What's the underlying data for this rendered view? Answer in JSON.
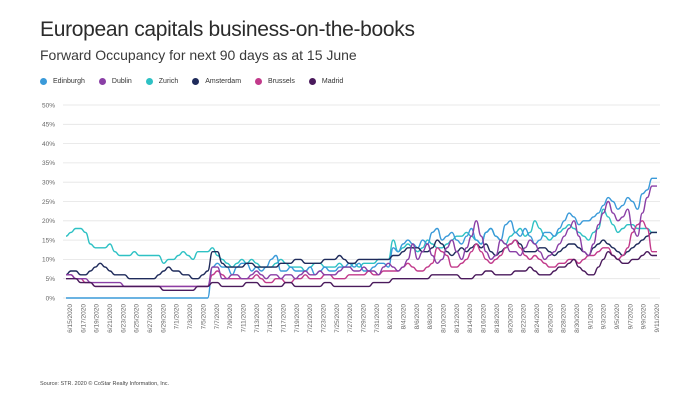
{
  "title": "European capitals business-on-the-books",
  "subtitle": "Forward Occupancy for next 90 days as at 15 June",
  "source": "Source: STR. 2020 © CoStar Realty Information, Inc.",
  "colors": {
    "Edinburgh": "#3a9ad9",
    "Dublin": "#8a3fa6",
    "Zurich": "#2ec1c4",
    "Amsterdam": "#1f2b5b",
    "Brussels": "#c23a8b",
    "Madrid": "#4a1a5c"
  },
  "chart_data": {
    "type": "line",
    "title": "European capitals business-on-the-books",
    "subtitle": "Forward Occupancy for next 90 days as at 15 June",
    "ylim": [
      0,
      50
    ],
    "yticks": [
      "0%",
      "5%",
      "10%",
      "15%",
      "20%",
      "25%",
      "30%",
      "35%",
      "40%",
      "45%",
      "50%"
    ],
    "grid": true,
    "legend": "top-left",
    "x_labels": [
      "6/15/2020",
      "6/17/2020",
      "6/19/2020",
      "6/21/2020",
      "6/23/2020",
      "6/25/2020",
      "6/27/2020",
      "6/29/2020",
      "7/1/2020",
      "7/3/2020",
      "7/5/2020",
      "7/7/2020",
      "7/9/2020",
      "7/11/2020",
      "7/13/2020",
      "7/15/2020",
      "7/17/2020",
      "7/19/2020",
      "7/21/2020",
      "7/23/2020",
      "7/25/2020",
      "7/27/2020",
      "7/29/2020",
      "7/31/2020",
      "8/2/2020",
      "8/4/2020",
      "8/6/2020",
      "8/8/2020",
      "8/10/2020",
      "8/12/2020",
      "8/14/2020",
      "8/16/2020",
      "8/18/2020",
      "8/20/2020",
      "8/22/2020",
      "8/24/2020",
      "8/26/2020",
      "8/28/2020",
      "8/30/2020",
      "9/1/2020",
      "9/3/2020",
      "9/5/2020",
      "9/7/2020",
      "9/9/2020",
      "9/11/2020"
    ],
    "series": [
      {
        "name": "Edinburgh",
        "values": [
          0,
          0,
          0,
          0,
          0,
          0,
          0,
          0,
          0,
          0,
          0,
          0,
          0,
          0,
          0,
          0,
          0,
          0,
          0,
          0,
          0,
          0,
          0,
          0,
          0,
          0,
          0,
          0,
          0,
          0,
          8,
          9,
          8,
          8,
          6,
          8,
          9,
          9,
          7,
          8,
          7,
          8,
          10,
          11,
          7,
          7,
          8,
          7,
          7,
          7,
          8,
          6,
          7,
          8,
          7,
          7,
          8,
          8,
          9,
          8,
          9,
          7,
          7,
          8,
          9,
          9,
          8,
          13,
          12,
          14,
          15,
          14,
          13,
          15,
          14,
          17,
          18,
          15,
          16,
          17,
          15,
          14,
          16,
          18,
          15,
          14,
          17,
          18,
          16,
          15,
          19,
          20,
          17,
          16,
          18,
          16,
          14,
          15,
          17,
          17,
          16,
          18,
          20,
          22,
          21,
          19,
          20,
          20,
          21,
          22,
          24,
          26,
          25,
          23,
          24,
          26,
          25,
          23,
          27,
          28,
          31,
          31
        ]
      },
      {
        "name": "Dublin",
        "values": [
          6,
          6,
          5,
          5,
          5,
          4,
          4,
          4,
          4,
          4,
          4,
          4,
          3,
          3,
          3,
          3,
          3,
          3,
          3,
          3,
          3,
          3,
          3,
          3,
          3,
          3,
          3,
          3,
          3,
          3,
          8,
          8,
          5,
          5,
          6,
          6,
          5,
          5,
          6,
          7,
          6,
          5,
          6,
          6,
          5,
          6,
          6,
          5,
          6,
          7,
          6,
          6,
          7,
          6,
          6,
          6,
          7,
          8,
          8,
          7,
          7,
          8,
          7,
          7,
          6,
          8,
          9,
          8,
          7,
          8,
          10,
          14,
          10,
          12,
          14,
          11,
          9,
          10,
          13,
          15,
          12,
          10,
          13,
          16,
          20,
          16,
          12,
          10,
          11,
          15,
          14,
          12,
          12,
          11,
          13,
          15,
          14,
          12,
          10,
          11,
          12,
          14,
          16,
          18,
          20,
          16,
          12,
          11,
          14,
          19,
          22,
          25,
          22,
          20,
          21,
          23,
          18,
          16,
          22,
          26,
          29,
          29
        ]
      },
      {
        "name": "Zurich",
        "values": [
          16,
          17,
          18,
          18,
          17,
          14,
          13,
          13,
          13,
          14,
          12,
          11,
          11,
          11,
          12,
          11,
          11,
          11,
          11,
          11,
          9,
          10,
          10,
          11,
          12,
          11,
          10,
          12,
          12,
          12,
          13,
          11,
          10,
          9,
          8,
          9,
          10,
          9,
          10,
          9,
          8,
          8,
          8,
          9,
          10,
          9,
          8,
          8,
          8,
          7,
          8,
          9,
          9,
          8,
          8,
          8,
          9,
          8,
          8,
          9,
          8,
          9,
          9,
          9,
          10,
          10,
          10,
          15,
          12,
          13,
          14,
          13,
          12,
          13,
          15,
          14,
          13,
          13,
          14,
          15,
          16,
          16,
          17,
          16,
          15,
          14,
          17,
          18,
          16,
          15,
          14,
          16,
          17,
          18,
          16,
          17,
          20,
          18,
          16,
          15,
          16,
          17,
          18,
          19,
          18,
          17,
          16,
          15,
          17,
          18,
          23,
          21,
          19,
          17,
          18,
          19,
          19,
          18,
          18,
          18,
          17,
          17
        ]
      },
      {
        "name": "Amsterdam",
        "values": [
          6,
          7,
          7,
          6,
          6,
          7,
          8,
          9,
          8,
          7,
          6,
          6,
          6,
          5,
          5,
          5,
          5,
          5,
          5,
          6,
          7,
          8,
          7,
          7,
          6,
          6,
          5,
          5,
          6,
          7,
          12,
          12,
          9,
          8,
          8,
          8,
          8,
          9,
          9,
          8,
          8,
          8,
          8,
          8,
          9,
          9,
          9,
          10,
          10,
          9,
          9,
          9,
          9,
          10,
          10,
          10,
          11,
          10,
          9,
          9,
          10,
          10,
          10,
          10,
          10,
          10,
          10,
          11,
          11,
          12,
          13,
          13,
          13,
          12,
          12,
          13,
          15,
          14,
          12,
          11,
          12,
          13,
          12,
          13,
          14,
          13,
          14,
          12,
          11,
          12,
          13,
          14,
          15,
          14,
          12,
          12,
          12,
          13,
          13,
          12,
          11,
          12,
          13,
          14,
          14,
          13,
          12,
          11,
          13,
          14,
          15,
          14,
          13,
          12,
          11,
          12,
          13,
          14,
          15,
          16,
          17,
          17
        ]
      },
      {
        "name": "Brussels",
        "values": [
          6,
          6,
          5,
          5,
          4,
          4,
          3,
          3,
          3,
          3,
          3,
          3,
          3,
          3,
          3,
          3,
          3,
          3,
          3,
          3,
          3,
          3,
          3,
          3,
          3,
          3,
          3,
          3,
          3,
          3,
          6,
          7,
          6,
          5,
          5,
          5,
          5,
          5,
          5,
          6,
          5,
          4,
          4,
          5,
          5,
          4,
          4,
          5,
          5,
          6,
          5,
          5,
          5,
          6,
          6,
          5,
          5,
          5,
          6,
          6,
          6,
          6,
          7,
          6,
          6,
          7,
          7,
          7,
          7,
          8,
          9,
          8,
          7,
          7,
          8,
          9,
          13,
          12,
          11,
          8,
          8,
          9,
          10,
          12,
          14,
          12,
          10,
          9,
          10,
          11,
          13,
          14,
          15,
          13,
          11,
          10,
          11,
          10,
          9,
          8,
          8,
          9,
          9,
          10,
          10,
          9,
          10,
          11,
          11,
          12,
          13,
          13,
          11,
          10,
          11,
          13,
          17,
          19,
          20,
          18,
          12,
          12
        ]
      },
      {
        "name": "Madrid",
        "values": [
          5,
          5,
          5,
          4,
          4,
          4,
          3,
          3,
          3,
          3,
          3,
          3,
          3,
          3,
          3,
          3,
          3,
          3,
          3,
          3,
          2,
          2,
          2,
          2,
          2,
          2,
          2,
          3,
          3,
          3,
          4,
          4,
          3,
          3,
          3,
          3,
          3,
          4,
          4,
          4,
          3,
          3,
          3,
          3,
          3,
          4,
          4,
          3,
          3,
          3,
          3,
          3,
          3,
          4,
          4,
          3,
          3,
          3,
          3,
          3,
          3,
          3,
          3,
          4,
          4,
          4,
          4,
          5,
          5,
          5,
          5,
          5,
          5,
          5,
          5,
          6,
          6,
          6,
          6,
          6,
          6,
          5,
          5,
          5,
          6,
          6,
          7,
          7,
          6,
          6,
          6,
          6,
          7,
          7,
          7,
          8,
          7,
          6,
          6,
          6,
          7,
          8,
          8,
          9,
          10,
          8,
          7,
          6,
          6,
          8,
          10,
          12,
          11,
          10,
          9,
          9,
          10,
          10,
          11,
          12,
          11,
          11
        ]
      }
    ]
  }
}
